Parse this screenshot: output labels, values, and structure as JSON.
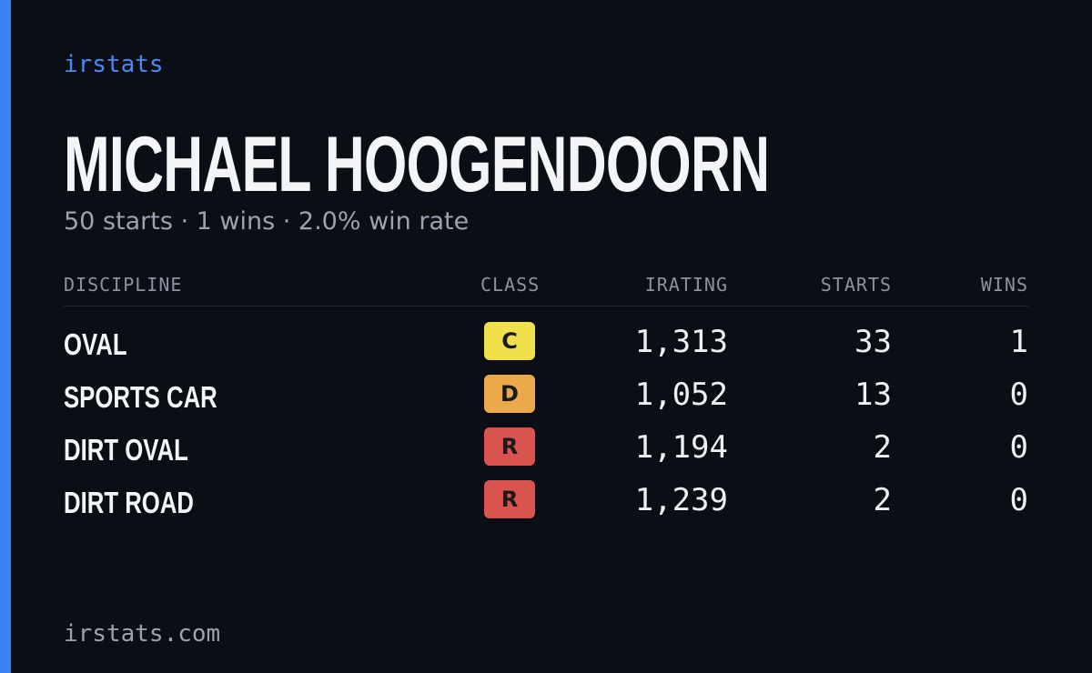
{
  "brand": "irstats",
  "driver": {
    "name": "MICHAEL HOOGENDOORN",
    "summary": "50 starts · 1 wins · 2.0% win rate"
  },
  "table": {
    "headers": [
      "DISCIPLINE",
      "CLASS",
      "IRATING",
      "STARTS",
      "WINS"
    ],
    "rows": [
      {
        "discipline": "OVAL",
        "class": "C",
        "class_color": "#efe04c",
        "irating": "1,313",
        "starts": "33",
        "wins": "1"
      },
      {
        "discipline": "SPORTS CAR",
        "class": "D",
        "class_color": "#eba94b",
        "irating": "1,052",
        "starts": "13",
        "wins": "0"
      },
      {
        "discipline": "DIRT OVAL",
        "class": "R",
        "class_color": "#d9534f",
        "irating": "1,194",
        "starts": "2",
        "wins": "0"
      },
      {
        "discipline": "DIRT ROAD",
        "class": "R",
        "class_color": "#d9534f",
        "irating": "1,239",
        "starts": "2",
        "wins": "0"
      }
    ]
  },
  "footer": "irstats.com"
}
